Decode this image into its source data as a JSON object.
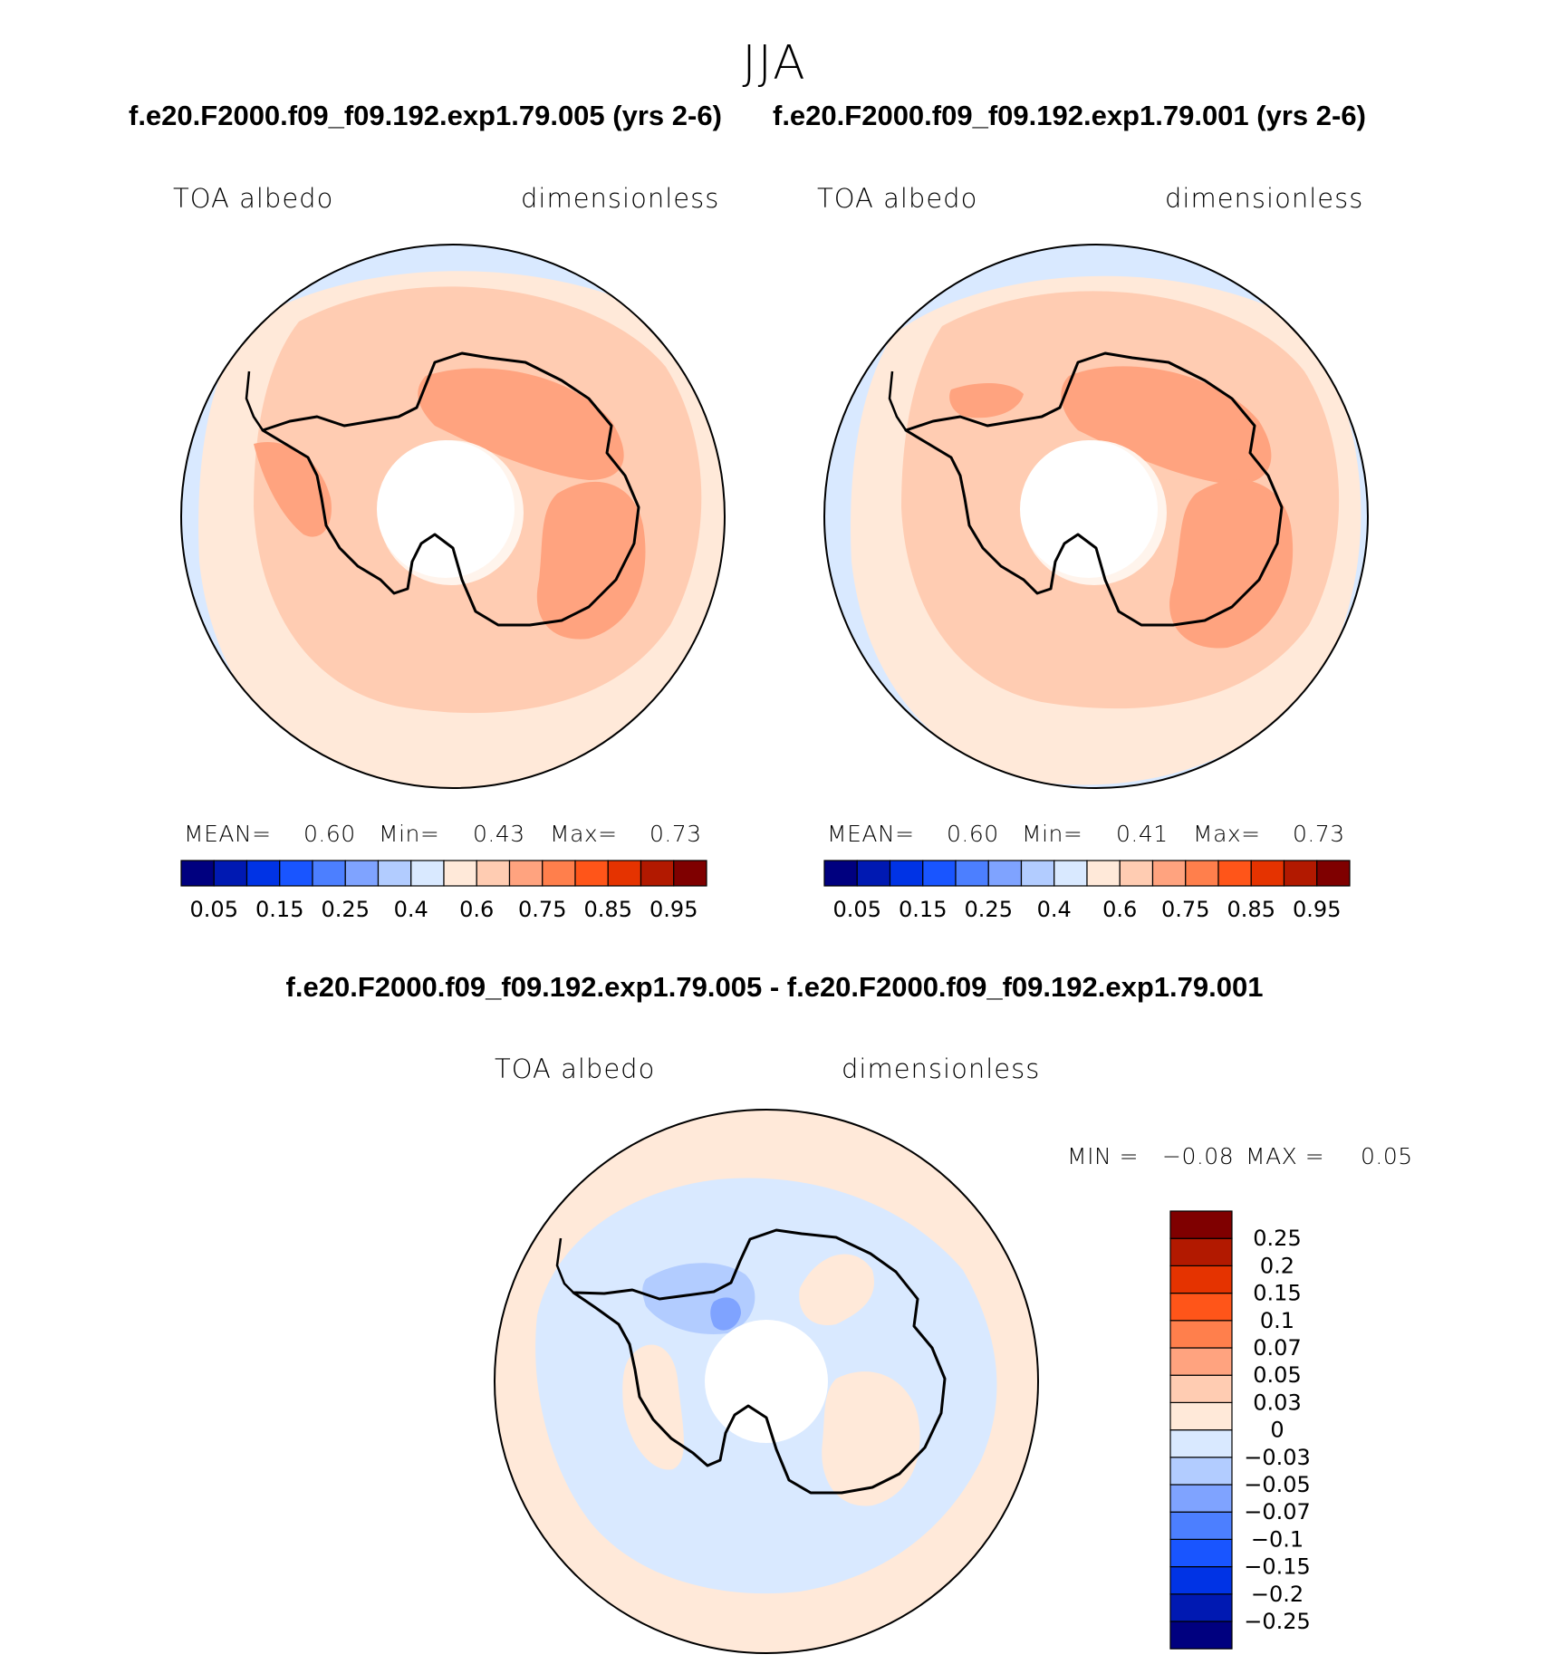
{
  "figure": {
    "season": "JJA",
    "diff_title": "f.e20.F2000.f09_f09.192.exp1.79.005 - f.e20.F2000.f09_f09.192.exp1.79.001"
  },
  "panels": [
    {
      "title": "f.e20.F2000.f09_f09.192.exp1.79.005 (yrs 2-6)",
      "variable": "TOA albedo",
      "units": "dimensionless",
      "mean_label": "MEAN=",
      "mean": "0.60",
      "min_label": "Min=",
      "min": "0.43",
      "max_label": "Max=",
      "max": "0.73"
    },
    {
      "title": "f.e20.F2000.f09_f09.192.exp1.79.001 (yrs 2-6)",
      "variable": "TOA albedo",
      "units": "dimensionless",
      "mean_label": "MEAN=",
      "mean": "0.60",
      "min_label": "Min=",
      "min": "0.41",
      "max_label": "Max=",
      "max": "0.73"
    },
    {
      "variable": "TOA albedo",
      "units": "dimensionless",
      "min_label": "MIN =",
      "min": "−0.08",
      "max_label": "MAX =",
      "max": "0.05"
    }
  ],
  "abs_colorbar": {
    "colors": [
      "#00007f",
      "#0019b2",
      "#0033e5",
      "#1955ff",
      "#4c7fff",
      "#7fa3ff",
      "#b2ccff",
      "#d9e9ff",
      "#ffe9d9",
      "#ffccb2",
      "#ffa37f",
      "#ff7f4c",
      "#ff5519",
      "#e53300",
      "#b21900",
      "#7f0000"
    ],
    "tick_labels": [
      "0.05",
      "0.15",
      "0.25",
      "0.4",
      "0.6",
      "0.75",
      "0.85",
      "0.95"
    ]
  },
  "diff_colorbar": {
    "colors_bottom_to_top": [
      "#00007f",
      "#0019b2",
      "#0033e5",
      "#1955ff",
      "#4c7fff",
      "#7fa3ff",
      "#b2ccff",
      "#d9e9ff",
      "#ffe9d9",
      "#ffccb2",
      "#ffa37f",
      "#ff7f4c",
      "#ff5519",
      "#e53300",
      "#b21900",
      "#7f0000"
    ],
    "tick_labels_top_to_bottom": [
      "0.25",
      "0.2",
      "0.15",
      "0.1",
      "0.07",
      "0.05",
      "0.03",
      "0",
      "−0.03",
      "−0.05",
      "−0.07",
      "−0.1",
      "−0.15",
      "−0.2",
      "−0.25"
    ]
  }
}
